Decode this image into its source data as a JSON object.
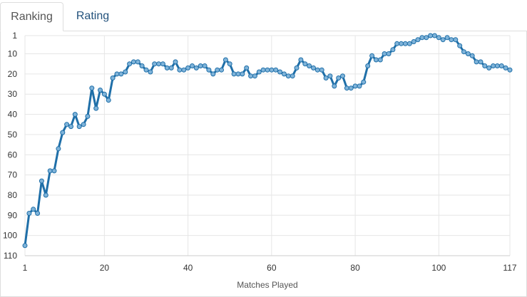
{
  "tabs": [
    {
      "label": "Ranking",
      "active": true
    },
    {
      "label": "Rating",
      "active": false
    }
  ],
  "colors": {
    "line": "#1f6fa8",
    "marker_fill": "#7fb3d9",
    "grid": "#e6e6e6",
    "tab_link": "#23527c"
  },
  "chart_data": {
    "type": "line",
    "xlabel": "Matches Played",
    "ylabel": "",
    "y_reversed": true,
    "xlim": [
      1,
      117
    ],
    "ylim": [
      1,
      110
    ],
    "x_ticks": [
      1,
      20,
      40,
      60,
      80,
      100,
      117
    ],
    "y_ticks": [
      1,
      10,
      20,
      30,
      40,
      50,
      60,
      70,
      80,
      90,
      100,
      110
    ],
    "grid": true,
    "series": [
      {
        "values": [
          105,
          89,
          87,
          89,
          73,
          80,
          68,
          68,
          57,
          49,
          45,
          46,
          40,
          46,
          45,
          41,
          27,
          37,
          28,
          30,
          33,
          22,
          20,
          20,
          19,
          15,
          14,
          14,
          16,
          18,
          19,
          15,
          15,
          15,
          17,
          17,
          14,
          18,
          18,
          17,
          16,
          17,
          16,
          16,
          18,
          20,
          18,
          18,
          13,
          15,
          20,
          20,
          20,
          17,
          21,
          21,
          19,
          18,
          18,
          18,
          18,
          19,
          20,
          21,
          21,
          17,
          13,
          15,
          16,
          17,
          18,
          18,
          22,
          21,
          26,
          22,
          21,
          27,
          27,
          26,
          26,
          24,
          16,
          11,
          13,
          13,
          10,
          10,
          8,
          5,
          5,
          5,
          5,
          4,
          3,
          2,
          2,
          1,
          1,
          2,
          3,
          2,
          3,
          3,
          6,
          9,
          10,
          11,
          14,
          14,
          16,
          17,
          16,
          16,
          16,
          17,
          18
        ]
      }
    ]
  }
}
